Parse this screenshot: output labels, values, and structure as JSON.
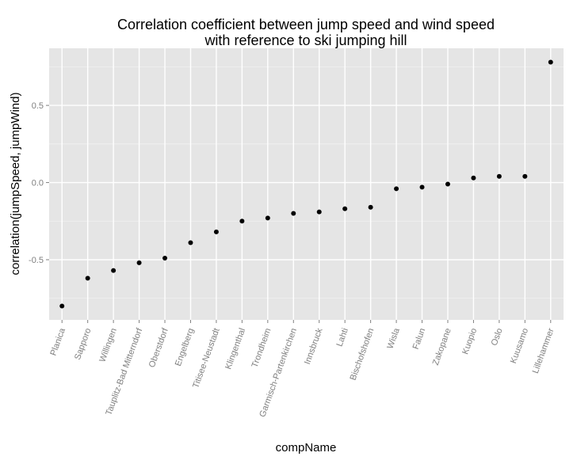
{
  "chart_data": {
    "type": "scatter",
    "title": [
      "Correlation coefficient between jump speed and wind speed",
      "with reference to ski jumping hill"
    ],
    "xlabel": "compName",
    "ylabel": "correlation(jumpSpeed, jumpWind)",
    "categories": [
      "Planica",
      "Sapporo",
      "Willingen",
      "Tauplitz-Bad Mitterndorf",
      "Oberstdorf",
      "Engelberg",
      "Titisee-Neustadt",
      "Klingenthal",
      "Trondheim",
      "Garmisch-Partenkirchen",
      "Innsbruck",
      "Lahti",
      "Bischofshofen",
      "Wisla",
      "Falun",
      "Zakopane",
      "Kuopio",
      "Oslo",
      "Kuusamo",
      "Lillehammer"
    ],
    "values": [
      -0.8,
      -0.62,
      -0.57,
      -0.52,
      -0.49,
      -0.39,
      -0.32,
      -0.25,
      -0.23,
      -0.2,
      -0.19,
      -0.17,
      -0.16,
      -0.04,
      -0.03,
      -0.01,
      0.03,
      0.04,
      0.04,
      0.78
    ],
    "yticks": [
      -0.5,
      0.0,
      0.5
    ],
    "ytick_labels": [
      "-0.5",
      "0.0",
      "0.5"
    ],
    "ylim": [
      -0.89,
      0.87
    ],
    "grid": true,
    "legend": "none",
    "colors": {
      "panel": "#e5e5e5",
      "grid_major": "#ffffff",
      "grid_minor": "#f2f2f2",
      "point": "#000000",
      "tick_text": "#7f7f7f"
    }
  }
}
